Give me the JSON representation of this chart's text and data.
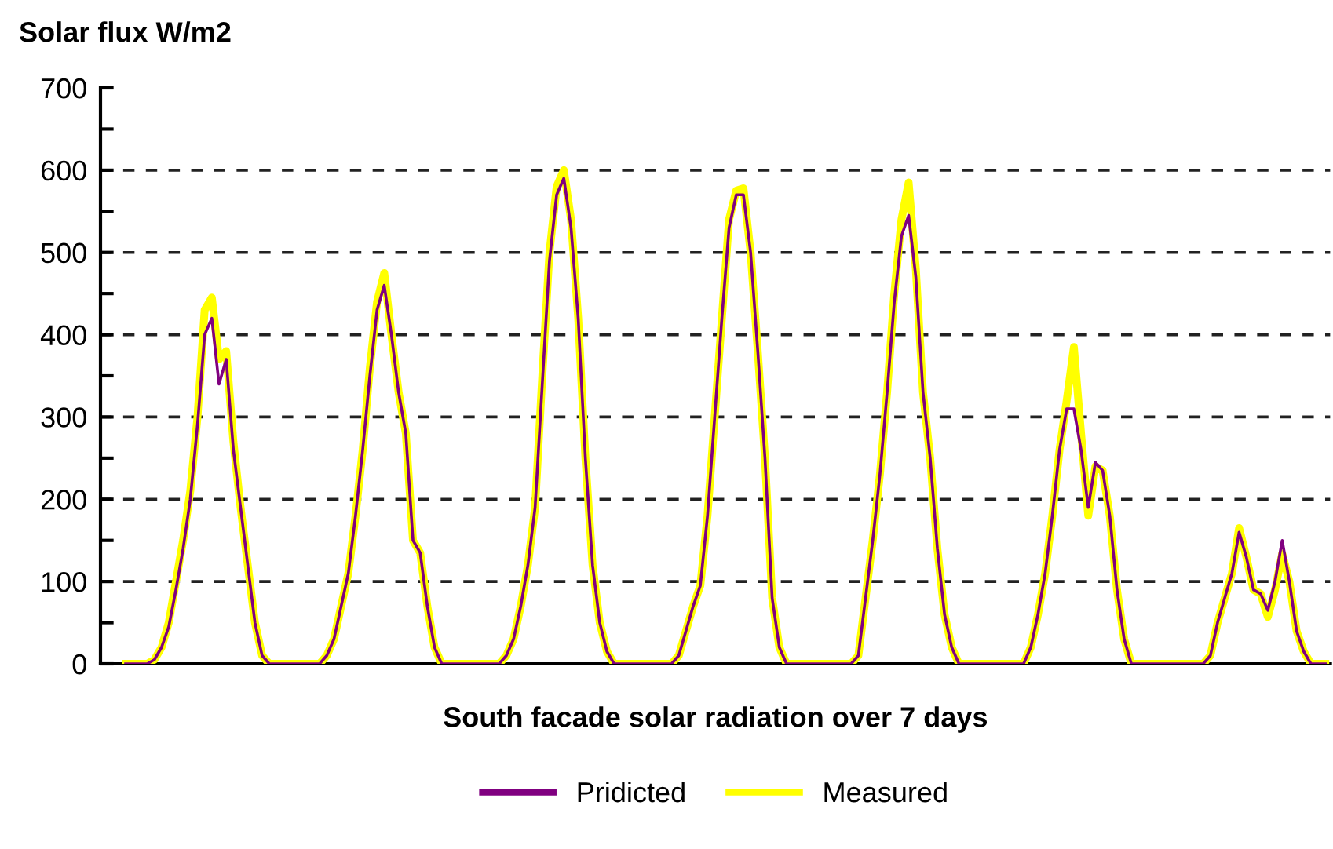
{
  "chart_data": {
    "type": "line",
    "title": "Solar flux W/m2",
    "xlabel": "South facade solar radiation over 7 days",
    "categories": [
      null,
      null,
      null,
      null,
      null,
      null,
      null,
      null,
      null,
      null,
      null,
      null,
      null,
      null,
      null,
      null,
      null,
      null,
      null,
      null,
      null,
      null,
      null,
      null,
      null,
      null,
      null,
      null,
      null,
      null,
      null,
      null,
      null,
      null,
      null,
      null,
      null,
      null,
      null,
      null,
      null,
      null,
      null,
      null,
      null,
      null,
      null,
      null,
      null,
      null,
      null,
      null,
      null,
      null,
      null,
      null,
      null,
      null,
      null,
      null,
      null,
      null,
      null,
      null,
      null,
      null,
      null,
      null,
      null,
      null,
      null,
      null,
      null,
      null,
      null,
      null,
      null,
      null,
      null,
      null,
      null,
      null,
      null,
      null,
      null,
      null,
      null,
      null,
      null,
      null,
      null,
      null,
      null,
      null,
      null,
      null,
      null,
      null,
      null,
      null,
      null,
      null,
      null,
      null,
      null,
      null,
      null,
      null,
      null,
      null,
      null,
      null,
      null,
      null,
      null,
      null,
      null,
      null,
      null,
      null,
      null,
      null,
      null,
      null,
      null,
      null,
      null,
      null,
      null,
      null,
      null,
      null,
      null,
      null,
      null,
      null,
      null,
      null,
      null,
      null,
      null,
      null,
      null,
      null,
      null,
      null,
      null,
      null,
      null,
      null,
      null,
      null,
      null,
      null,
      null,
      null,
      null,
      null,
      null,
      null,
      null,
      null,
      null,
      null,
      null,
      null,
      null,
      null
    ],
    "series": [
      {
        "name": "Pridicted",
        "color": "#800080",
        "values": [
          0,
          0,
          0,
          0,
          5,
          20,
          45,
          90,
          140,
          200,
          290,
          400,
          420,
          340,
          370,
          260,
          190,
          120,
          50,
          10,
          0,
          0,
          0,
          0,
          0,
          0,
          0,
          0,
          10,
          30,
          70,
          110,
          180,
          260,
          350,
          430,
          460,
          400,
          330,
          280,
          150,
          135,
          70,
          20,
          0,
          0,
          0,
          0,
          0,
          0,
          0,
          0,
          0,
          10,
          30,
          70,
          120,
          190,
          340,
          490,
          570,
          590,
          530,
          420,
          250,
          120,
          50,
          15,
          0,
          0,
          0,
          0,
          0,
          0,
          0,
          0,
          0,
          10,
          40,
          70,
          95,
          180,
          300,
          420,
          530,
          570,
          570,
          500,
          380,
          250,
          80,
          20,
          0,
          0,
          0,
          0,
          0,
          0,
          0,
          0,
          0,
          0,
          10,
          80,
          150,
          230,
          330,
          440,
          520,
          545,
          470,
          330,
          250,
          140,
          60,
          20,
          0,
          0,
          0,
          0,
          0,
          0,
          0,
          0,
          0,
          0,
          20,
          60,
          110,
          180,
          260,
          310,
          310,
          260,
          190,
          245,
          235,
          180,
          90,
          30,
          0,
          0,
          0,
          0,
          0,
          0,
          0,
          0,
          0,
          0,
          0,
          10,
          50,
          80,
          110,
          160,
          130,
          90,
          85,
          65,
          100,
          150,
          100,
          40,
          15,
          0,
          0,
          0
        ]
      },
      {
        "name": "Measured",
        "color": "#ffff00",
        "values": [
          0,
          0,
          0,
          0,
          5,
          20,
          50,
          100,
          150,
          210,
          300,
          430,
          445,
          370,
          380,
          270,
          190,
          120,
          50,
          10,
          0,
          0,
          0,
          0,
          0,
          0,
          0,
          0,
          10,
          30,
          70,
          110,
          180,
          260,
          360,
          440,
          475,
          400,
          330,
          280,
          150,
          135,
          70,
          20,
          0,
          0,
          0,
          0,
          0,
          0,
          0,
          0,
          0,
          10,
          30,
          70,
          120,
          190,
          350,
          500,
          580,
          600,
          540,
          420,
          250,
          120,
          50,
          15,
          0,
          0,
          0,
          0,
          0,
          0,
          0,
          0,
          0,
          10,
          40,
          70,
          95,
          180,
          300,
          420,
          540,
          575,
          578,
          500,
          380,
          250,
          80,
          20,
          0,
          0,
          0,
          0,
          0,
          0,
          0,
          0,
          0,
          0,
          10,
          80,
          150,
          230,
          330,
          450,
          540,
          585,
          480,
          330,
          250,
          140,
          60,
          20,
          0,
          0,
          0,
          0,
          0,
          0,
          0,
          0,
          0,
          0,
          20,
          60,
          110,
          180,
          260,
          320,
          385,
          280,
          180,
          240,
          235,
          180,
          90,
          30,
          0,
          0,
          0,
          0,
          0,
          0,
          0,
          0,
          0,
          0,
          0,
          10,
          50,
          80,
          110,
          165,
          130,
          90,
          85,
          57,
          90,
          134,
          100,
          40,
          15,
          0,
          0,
          0
        ]
      }
    ],
    "ylim": [
      0,
      700
    ],
    "yticks": [
      0,
      {
        "value": 50,
        "label": null
      },
      100,
      {
        "value": 150,
        "label": null
      },
      200,
      {
        "value": 250,
        "label": null
      },
      300,
      {
        "value": 350,
        "label": null
      },
      400,
      {
        "value": 450,
        "label": null
      },
      500,
      {
        "value": 550,
        "label": null
      },
      600,
      {
        "value": 650,
        "label": null
      },
      700
    ],
    "grid": "y",
    "legend": "bottom",
    "line_style": "solid",
    "marker": "none"
  }
}
